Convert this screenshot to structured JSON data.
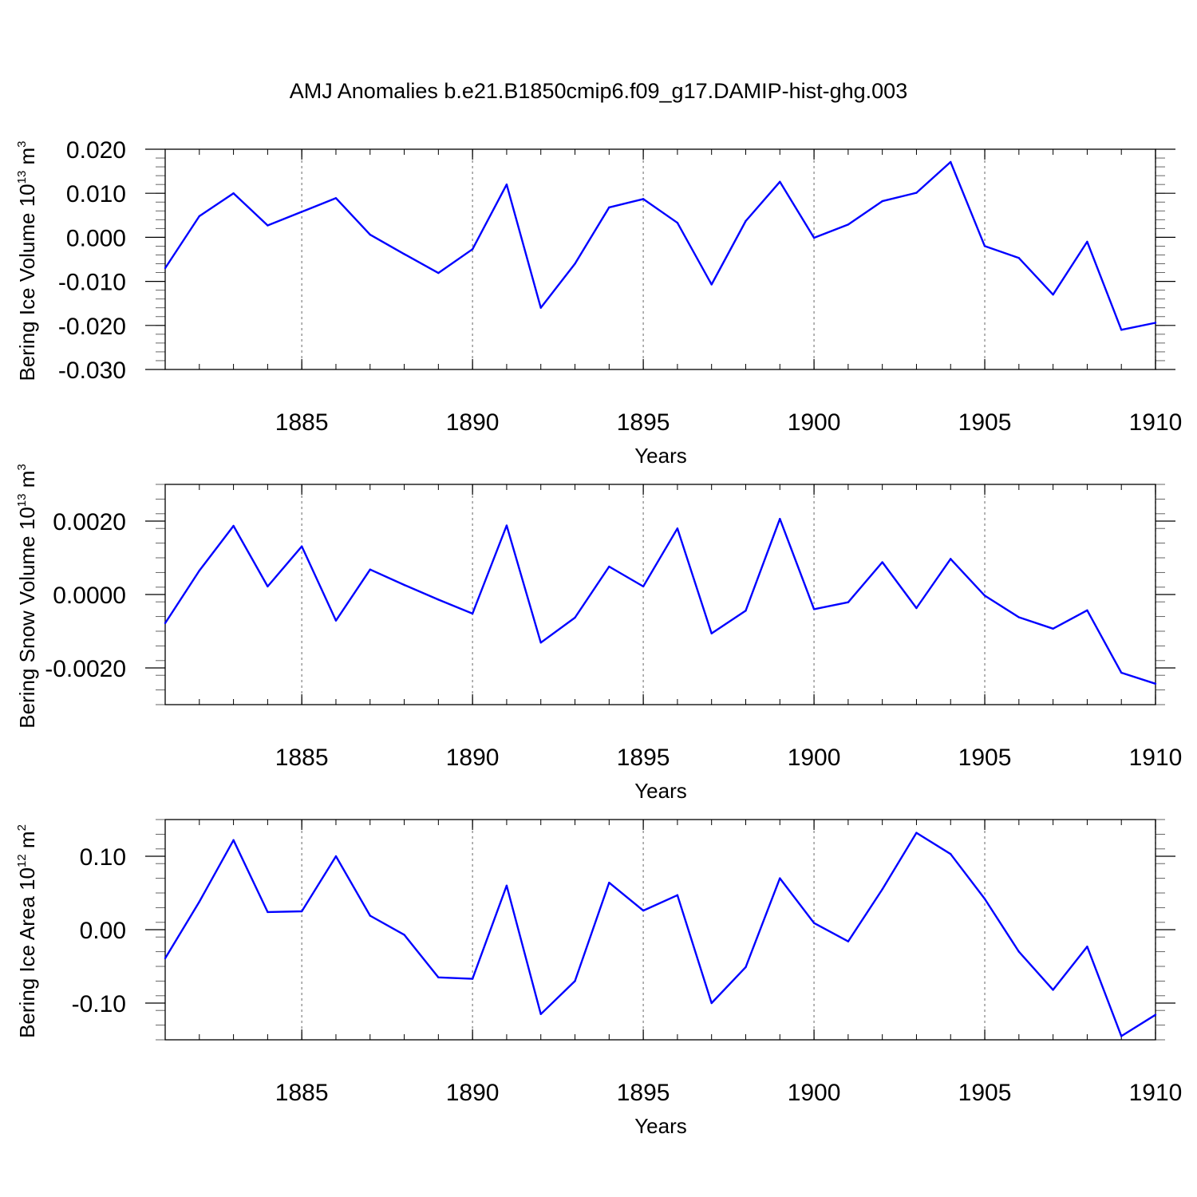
{
  "title": "AMJ Anomalies b.e21.B1850cmip6.f09_g17.DAMIP-hist-ghg.003",
  "colors": {
    "line": "#0000ff",
    "axis": "#000000",
    "grid": "#808080"
  },
  "chart_data": [
    {
      "type": "line",
      "ylabel_main": "Bering Ice Volume 10",
      "ylabel_sup": "13",
      "ylabel_unit": " m",
      "ylabel_unit_sup": "3",
      "xlabel": "Years",
      "xlim": [
        1881,
        1910
      ],
      "ylim": [
        -0.03,
        0.02
      ],
      "yticks": [
        0.02,
        0.01,
        0.0,
        -0.01,
        -0.02,
        -0.03
      ],
      "ytick_labels": [
        "0.020",
        "0.010",
        "0.000",
        "-0.010",
        "-0.020",
        "-0.030"
      ],
      "xticks": [
        1885,
        1890,
        1895,
        1900,
        1905,
        1910
      ],
      "xtick_labels": [
        "1885",
        "1890",
        "1895",
        "1900",
        "1905",
        "1910"
      ],
      "x": [
        1881,
        1882,
        1883,
        1884,
        1885,
        1886,
        1887,
        1888,
        1889,
        1890,
        1891,
        1892,
        1893,
        1894,
        1895,
        1896,
        1897,
        1898,
        1899,
        1900,
        1901,
        1902,
        1903,
        1904,
        1905,
        1906,
        1907,
        1908,
        1909,
        1910
      ],
      "values": [
        -0.007,
        0.0048,
        0.01,
        0.0027,
        0.0058,
        0.0089,
        0.0006,
        -0.0038,
        -0.0081,
        -0.0027,
        0.012,
        -0.016,
        -0.006,
        0.0068,
        0.0087,
        0.0033,
        -0.0107,
        0.0037,
        0.0126,
        -0.0001,
        0.0029,
        0.0082,
        0.0101,
        0.0171,
        -0.002,
        -0.0047,
        -0.013,
        -0.001,
        -0.021,
        -0.0194
      ]
    },
    {
      "type": "line",
      "ylabel_main": "Bering Snow Volume 10",
      "ylabel_sup": "13",
      "ylabel_unit": " m",
      "ylabel_unit_sup": "3",
      "xlabel": "Years",
      "xlim": [
        1881,
        1910
      ],
      "ylim": [
        -0.003,
        0.003
      ],
      "yticks": [
        0.002,
        0.0,
        -0.002
      ],
      "ytick_labels": [
        "0.0020",
        "0.0000",
        "-0.0020"
      ],
      "xticks": [
        1885,
        1890,
        1895,
        1900,
        1905,
        1910
      ],
      "xtick_labels": [
        "1885",
        "1890",
        "1895",
        "1900",
        "1905",
        "1910"
      ],
      "x": [
        1881,
        1882,
        1883,
        1884,
        1885,
        1886,
        1887,
        1888,
        1889,
        1890,
        1891,
        1892,
        1893,
        1894,
        1895,
        1896,
        1897,
        1898,
        1899,
        1900,
        1901,
        1902,
        1903,
        1904,
        1905,
        1906,
        1907,
        1908,
        1909,
        1910
      ],
      "values": [
        -0.00078,
        0.00065,
        0.00187,
        0.00022,
        0.00131,
        -0.00071,
        0.00068,
        0.00026,
        -0.00014,
        -0.00052,
        0.00188,
        -0.00131,
        -0.00063,
        0.00076,
        0.00022,
        0.0018,
        -0.00106,
        -0.00044,
        0.00206,
        -0.0004,
        -0.00021,
        0.00088,
        -0.00037,
        0.00097,
        -3e-05,
        -0.00062,
        -0.00093,
        -0.00043,
        -0.00213,
        -0.00243
      ]
    },
    {
      "type": "line",
      "ylabel_main": "Bering Ice Area 10",
      "ylabel_sup": "12",
      "ylabel_unit": " m",
      "ylabel_unit_sup": "2",
      "xlabel": "Years",
      "xlim": [
        1881,
        1910
      ],
      "ylim": [
        -0.15,
        0.15
      ],
      "yticks": [
        0.1,
        0.0,
        -0.1
      ],
      "ytick_labels": [
        "0.10",
        "0.00",
        "-0.10"
      ],
      "xticks": [
        1885,
        1890,
        1895,
        1900,
        1905,
        1910
      ],
      "xtick_labels": [
        "1885",
        "1890",
        "1895",
        "1900",
        "1905",
        "1910"
      ],
      "x": [
        1881,
        1882,
        1883,
        1884,
        1885,
        1886,
        1887,
        1888,
        1889,
        1890,
        1891,
        1892,
        1893,
        1894,
        1895,
        1896,
        1897,
        1898,
        1899,
        1900,
        1901,
        1902,
        1903,
        1904,
        1905,
        1906,
        1907,
        1908,
        1909,
        1910
      ],
      "values": [
        -0.039,
        0.038,
        0.122,
        0.024,
        0.025,
        0.1,
        0.019,
        -0.007,
        -0.065,
        -0.067,
        0.06,
        -0.115,
        -0.07,
        0.064,
        0.026,
        0.047,
        -0.1,
        -0.051,
        0.07,
        0.009,
        -0.016,
        0.055,
        0.132,
        0.103,
        0.042,
        -0.03,
        -0.082,
        -0.023,
        -0.145,
        -0.116
      ]
    }
  ]
}
